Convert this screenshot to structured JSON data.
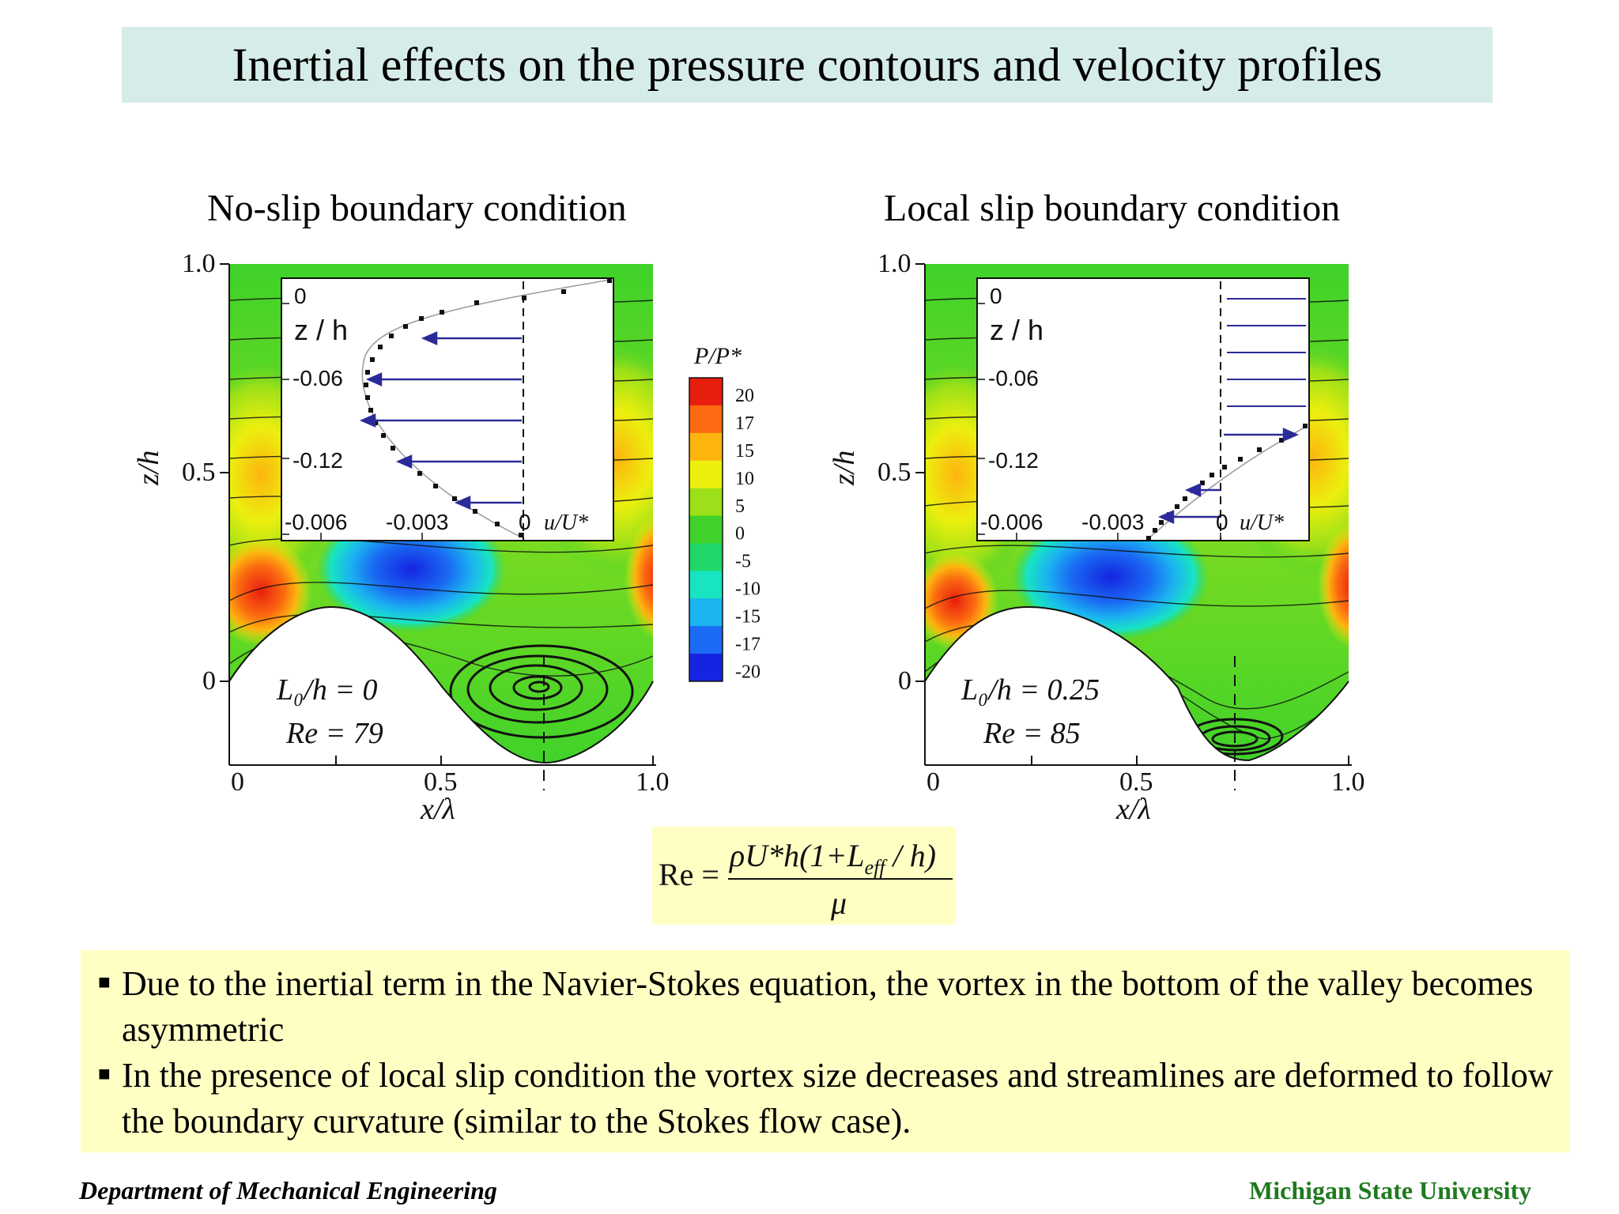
{
  "slide_title": "Inertial effects on the pressure contours and velocity profiles",
  "left_panel": {
    "title": "No-slip boundary condition",
    "y_axis_label": "z/h",
    "x_axis_label": "x/λ",
    "y_ticks": [
      "1.0",
      "0.5",
      "0"
    ],
    "x_ticks": [
      "0",
      "0.5",
      "1.0"
    ],
    "param1": "L₀/h = 0",
    "param2": "Re = 79",
    "inset": {
      "y_label": "z / h",
      "x_label": "u/U*",
      "y_ticks": [
        "0",
        "-0.06",
        "-0.12"
      ],
      "x_ticks": [
        "-0.006",
        "-0.003",
        "0"
      ]
    }
  },
  "right_panel": {
    "title": "Local slip boundary condition",
    "y_axis_label": "z/h",
    "x_axis_label": "x/λ",
    "y_ticks": [
      "1.0",
      "0.5",
      "0"
    ],
    "x_ticks": [
      "0",
      "0.5",
      "1.0"
    ],
    "param1": "L₀/h = 0.25",
    "param2": "Re = 85",
    "inset": {
      "y_label": "z / h",
      "x_label": "u/U*",
      "y_ticks": [
        "0",
        "-0.06",
        "-0.12"
      ],
      "x_ticks": [
        "-0.006",
        "-0.003",
        "0"
      ]
    }
  },
  "colorbar": {
    "label": "P/P*",
    "ticks": [
      "20",
      "17",
      "15",
      "10",
      "5",
      "0",
      "-5",
      "-10",
      "-15",
      "-17",
      "-20"
    ],
    "colors": [
      "#e81e0e",
      "#fb6a10",
      "#fdb40f",
      "#ecef0e",
      "#9be018",
      "#3fd22a",
      "#20d668",
      "#18e4c2",
      "#1bb4f0",
      "#1a6af3",
      "#1424e0"
    ]
  },
  "formula": {
    "lhs": "Re =",
    "numerator": "ρU*h(1+L",
    "numerator_sub": "eff",
    "numerator_end": " / h)",
    "denominator": "μ"
  },
  "notes": [
    "Due to the inertial term in the Navier-Stokes equation, the vortex in the bottom of the valley becomes asymmetric",
    "In the presence of local slip condition the vortex size decreases and streamlines are deformed to follow the boundary curvature (similar to the Stokes flow case)."
  ],
  "footer": {
    "left": "Department of Mechanical Engineering",
    "right": "Michigan State University"
  }
}
